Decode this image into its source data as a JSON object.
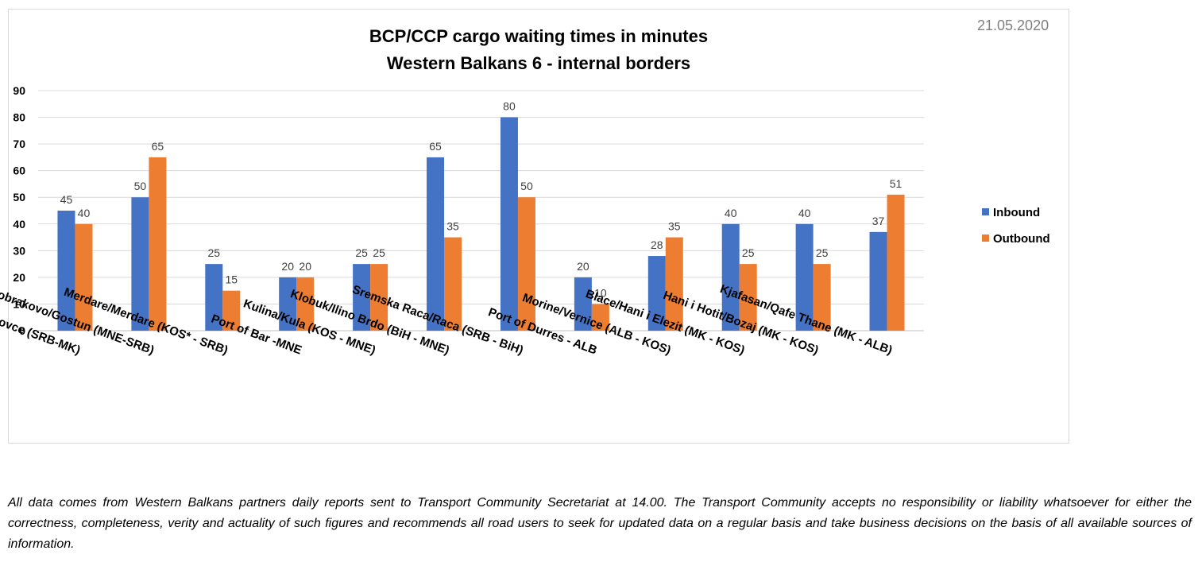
{
  "chart_data": {
    "type": "bar",
    "title": "BCP/CCP cargo waiting times in minutes",
    "subtitle": "Western Balkans 6 - internal borders",
    "date": "21.05.2020",
    "categories": [
      "Presevo/ Tabanovce (SRB-MK)",
      "Dobrakovo/Gostun (MNE-SRB)",
      "Merdare/Merdare (KOS* - SRB)",
      "Port of Bar -MNE",
      "Kulina/Kula (KOS - MNE)",
      "Klobuk/Ilino Brdo (BiH - MNE)",
      "Sremska Raca/Raca (SRB - BiH)",
      "Port of Durres - ALB",
      "Morine/Vernice (ALB - KOS)",
      "Blace/Hani i Elezit (MK - KOS)",
      "Hani i Hotit/Bozaj (MK - KOS)",
      "Kjafasan/Qafe Thane (MK - ALB)"
    ],
    "series": [
      {
        "name": "Inbound",
        "color": "#4472c4",
        "values": [
          45,
          50,
          25,
          20,
          25,
          65,
          80,
          20,
          28,
          40,
          40,
          37
        ]
      },
      {
        "name": "Outbound",
        "color": "#ed7d31",
        "values": [
          40,
          65,
          15,
          20,
          25,
          35,
          50,
          10,
          35,
          25,
          25,
          51
        ]
      }
    ],
    "ylim": [
      0,
      90
    ],
    "yticks": [
      0,
      10,
      20,
      30,
      40,
      50,
      60,
      70,
      80,
      90
    ],
    "grid": true,
    "legend_position": "right",
    "xlabel": "",
    "ylabel": ""
  },
  "footer": {
    "disclaimer": "All data comes from Western Balkans partners daily reports sent to Transport Community Secretariat at 14.00. The Transport Community accepts no responsibility or liability whatsoever for either the correctness, completeness, verity and actuality of such figures and recommends all road users to seek for updated data on a regular basis and take business decisions on the basis of all available sources of information."
  }
}
